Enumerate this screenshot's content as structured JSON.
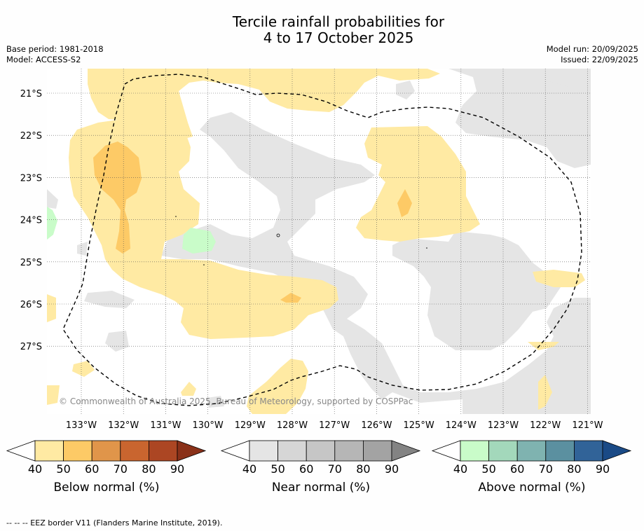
{
  "title_line1": "Tercile rainfall probabilities for",
  "title_line2": "4 to 17 October 2025",
  "base_period": "Base period: 1981-2018",
  "model": "Model: ACCESS-S2",
  "model_run": "Model run: 20/09/2025",
  "issued": "Issued: 22/09/2025",
  "lat_labels": [
    "21°S",
    "22°S",
    "23°S",
    "24°S",
    "25°S",
    "26°S",
    "27°S"
  ],
  "lon_labels": [
    "133°W",
    "132°W",
    "131°W",
    "130°W",
    "129°W",
    "128°W",
    "127°W",
    "126°W",
    "125°W",
    "124°W",
    "123°W",
    "122°W",
    "121°W"
  ],
  "copyright": "© Commonwealth of Australia 2025, Bureau of Meteorology, supported by COSPPac",
  "colorbars": [
    {
      "label": "Below normal (%)",
      "ticks": [
        "40",
        "50",
        "60",
        "70",
        "80",
        "90"
      ],
      "colors": [
        "#ffeaa3",
        "#fdca66",
        "#e0954a",
        "#c9652f",
        "#ac4623",
        "#8a3119"
      ]
    },
    {
      "label": "Near normal (%)",
      "ticks": [
        "40",
        "50",
        "60",
        "70",
        "80",
        "90"
      ],
      "colors": [
        "#e5e5e5",
        "#d6d6d6",
        "#c6c6c6",
        "#b6b6b6",
        "#a3a3a3",
        "#838383"
      ]
    },
    {
      "label": "Above normal (%)",
      "ticks": [
        "40",
        "50",
        "60",
        "70",
        "80",
        "90"
      ],
      "colors": [
        "#c9fcc9",
        "#a3d8bb",
        "#7fb3b0",
        "#5b90a0",
        "#316398",
        "#1a4a86"
      ]
    }
  ],
  "footer": "--  --  -- EEZ border V11 (Flanders Marine Institute, 2019).",
  "colors": {
    "below": "#ffeaa3",
    "below_mid": "#fdca66",
    "near": "#e5e5e5",
    "above": "#c9fcc9"
  }
}
